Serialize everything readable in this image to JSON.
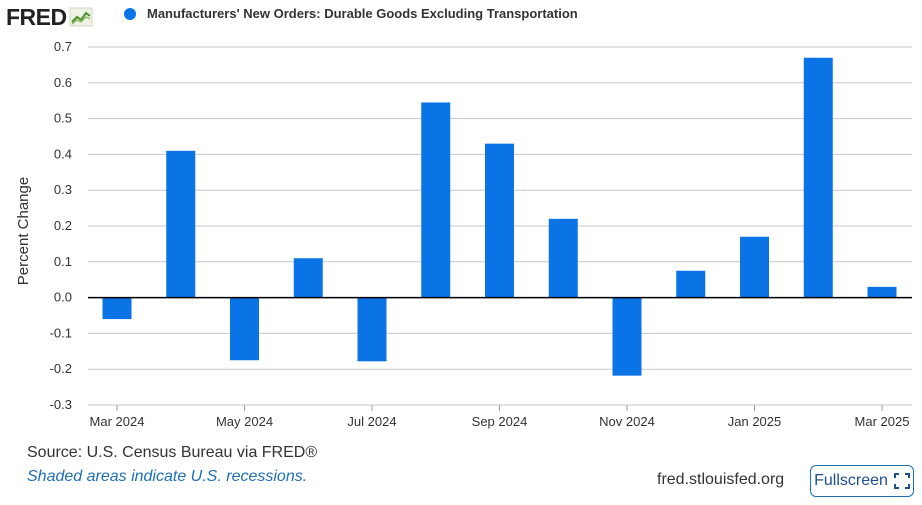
{
  "brand": {
    "logo_text": "FRED"
  },
  "legend": {
    "label": "Manufacturers' New Orders: Durable Goods Excluding Transportation"
  },
  "footer": {
    "source": "Source: U.S. Census Bureau via FRED®",
    "recession_note": "Shaded areas indicate U.S. recessions.",
    "site": "fred.stlouisfed.org",
    "fullscreen_label": "Fullscreen"
  },
  "colors": {
    "bar": "#0a74e6",
    "grid": "#c7c7c7",
    "zero_line": "#000000",
    "link": "#1f6fb5"
  },
  "chart_data": {
    "type": "bar",
    "title": "",
    "ylabel": "Percent Change",
    "xlabel": "",
    "ylim": [
      -0.3,
      0.7
    ],
    "yticks": [
      0.7,
      0.6,
      0.5,
      0.4,
      0.3,
      0.2,
      0.1,
      0.0,
      -0.1,
      -0.2,
      -0.3
    ],
    "ytick_labels": [
      "0.7",
      "0.6",
      "0.5",
      "0.4",
      "0.3",
      "0.2",
      "0.1",
      "0.0",
      "-0.1",
      "-0.2",
      "-0.3"
    ],
    "grid": true,
    "categories": [
      "Mar 2024",
      "Apr 2024",
      "May 2024",
      "Jun 2024",
      "Jul 2024",
      "Aug 2024",
      "Sep 2024",
      "Oct 2024",
      "Nov 2024",
      "Dec 2024",
      "Jan 2025",
      "Feb 2025",
      "Mar 2025"
    ],
    "xtick_labels": [
      "Mar 2024",
      "",
      "May 2024",
      "",
      "Jul 2024",
      "",
      "Sep 2024",
      "",
      "Nov 2024",
      "",
      "Jan 2025",
      "",
      "Mar 2025"
    ],
    "series": [
      {
        "name": "Manufacturers' New Orders: Durable Goods Excluding Transportation",
        "values": [
          -0.06,
          0.41,
          -0.175,
          0.11,
          -0.178,
          0.545,
          0.43,
          0.22,
          -0.218,
          0.075,
          0.17,
          0.67,
          0.03
        ]
      }
    ]
  }
}
